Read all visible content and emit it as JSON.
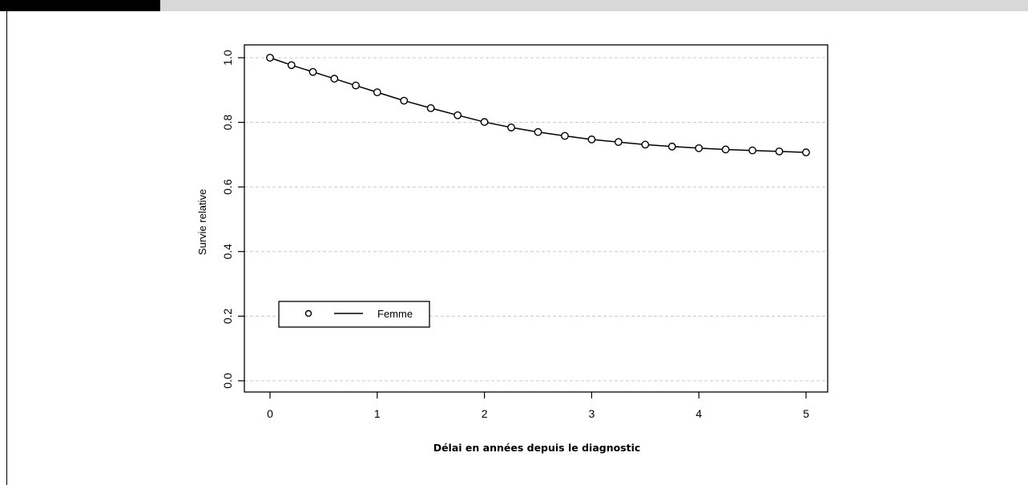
{
  "chart_data": {
    "type": "line",
    "title": "",
    "xlabel": "Délai en années depuis le diagnostic",
    "ylabel": "Survie relative",
    "xlim": [
      0,
      5
    ],
    "ylim": [
      0,
      1
    ],
    "x_ticks": [
      "0",
      "1",
      "2",
      "3",
      "4",
      "5"
    ],
    "y_ticks": [
      "0.0",
      "0.2",
      "0.4",
      "0.6",
      "0.8",
      "1.0"
    ],
    "grid": "horizontal dashed",
    "legend_position": "bottom-left",
    "series": [
      {
        "name": "Femme",
        "marker": "open-circle",
        "color": "#000000",
        "x": [
          0,
          0.2,
          0.4,
          0.6,
          0.8,
          1.0,
          1.25,
          1.5,
          1.75,
          2.0,
          2.25,
          2.5,
          2.75,
          3.0,
          3.25,
          3.5,
          3.75,
          4.0,
          4.25,
          4.5,
          4.75,
          5.0
        ],
        "y": [
          1.0,
          0.977,
          0.956,
          0.935,
          0.914,
          0.893,
          0.867,
          0.844,
          0.822,
          0.801,
          0.784,
          0.77,
          0.758,
          0.747,
          0.739,
          0.731,
          0.725,
          0.72,
          0.716,
          0.713,
          0.71,
          0.707
        ]
      }
    ]
  }
}
